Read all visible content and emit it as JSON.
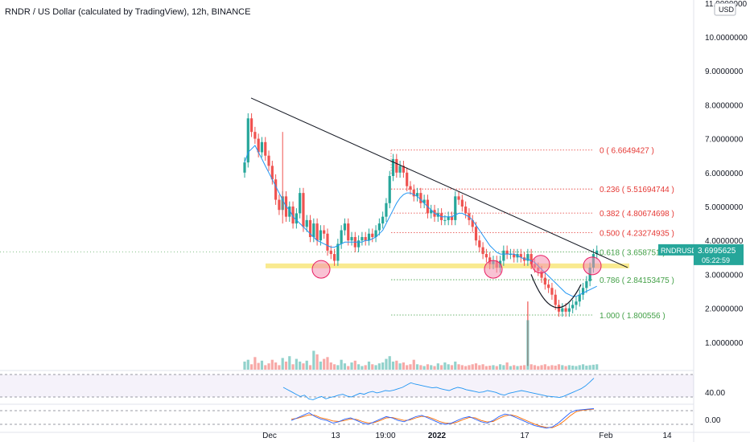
{
  "header": {
    "title": "RNDR / US Dollar (calculated by TradingView), 12h, BINANCE"
  },
  "price_axis": {
    "currency_badge": "USD",
    "labels": [
      "11.0000000",
      "10.0000000",
      "9.0000000",
      "8.0000000",
      "7.0000000",
      "6.0000000",
      "5.0000000",
      "4.0000000",
      "3.0000000",
      "2.0000000",
      "1.0000000"
    ]
  },
  "rsi_axis": {
    "labels": [
      "40.00"
    ]
  },
  "stoch_axis": {
    "labels": [
      "0.00"
    ]
  },
  "last_price": {
    "symbol": "RNDRUSD",
    "price": "3.6995625",
    "countdown": "05:22:59",
    "color": "#26a69a"
  },
  "time_axis": {
    "labels": [
      "Dec",
      "13",
      "19:00",
      "2022",
      "17",
      "Feb",
      "14"
    ]
  },
  "fib_levels": [
    {
      "label": "0 ( 6.6649427 )",
      "value": 6.6649427,
      "color": "#e53935"
    },
    {
      "label": "0.236 ( 5.51694744 )",
      "value": 5.51694744,
      "color": "#e53935"
    },
    {
      "label": "0.382 ( 4.80674698 )",
      "value": 4.80674698,
      "color": "#e53935"
    },
    {
      "label": "0.500 ( 4.23274935 )",
      "value": 4.23274935,
      "color": "#e53935"
    },
    {
      "label": "0.618 ( 3.658751 )",
      "value": 3.658751,
      "color": "#43a047"
    },
    {
      "label": "0.786 ( 2.84153475 )",
      "value": 2.84153475,
      "color": "#43a047"
    },
    {
      "label": "1.000 ( 1.800556 )",
      "value": 1.800556,
      "color": "#43a047"
    }
  ],
  "colors": {
    "up": "#26a69a",
    "down": "#ef5350",
    "ma": "#2196f3",
    "trendline": "#131722",
    "support": "#f7e36b",
    "circle": "#f48fb1"
  },
  "chart_data": {
    "type": "candlestick",
    "symbol": "RNDRUSD",
    "interval": "12h",
    "exchange": "BINANCE",
    "y_range": [
      0,
      11
    ],
    "ohlc_close": [
      6.3,
      7.6,
      7.2,
      7.0,
      6.6,
      6.9,
      6.5,
      6.2,
      5.8,
      5.2,
      4.9,
      5.3,
      4.7,
      5.0,
      4.5,
      4.8,
      5.4,
      4.4,
      4.6,
      4.1,
      4.5,
      4.0,
      4.3,
      4.2,
      3.7,
      3.6,
      3.4,
      3.9,
      4.3,
      4.5,
      4.0,
      4.1,
      3.8,
      4.0,
      4.1,
      4.0,
      4.2,
      4.1,
      4.3,
      4.5,
      4.7,
      5.1,
      5.9,
      6.4,
      6.0,
      6.2,
      6.0,
      5.6,
      5.5,
      5.3,
      5.4,
      5.1,
      5.2,
      4.8,
      4.9,
      4.7,
      4.8,
      4.6,
      4.6,
      4.7,
      4.6,
      5.3,
      5.2,
      5.0,
      4.8,
      4.6,
      4.4,
      4.0,
      3.8,
      3.6,
      3.5,
      3.3,
      3.4,
      3.2,
      3.4,
      3.7,
      3.6,
      3.6,
      3.5,
      3.6,
      3.5,
      3.4,
      3.6,
      3.3,
      3.2,
      3.1,
      2.9,
      2.7,
      2.6,
      2.4,
      2.1,
      1.9,
      2.0,
      1.9,
      2.0,
      2.1,
      2.2,
      2.4,
      2.6,
      2.8,
      3.2,
      3.6,
      3.7
    ],
    "ma": [
      6.3,
      6.6,
      6.7,
      6.8,
      6.6,
      6.4,
      6.2,
      6.0,
      5.8,
      5.6,
      5.4,
      5.2,
      5.0,
      4.9,
      4.7,
      4.6,
      4.5,
      4.4,
      4.3,
      4.2,
      4.1,
      4.0,
      3.95,
      3.9,
      3.85,
      3.8,
      3.8,
      3.85,
      3.9,
      3.95,
      3.95,
      3.95,
      3.95,
      3.95,
      3.95,
      4.0,
      4.0,
      4.05,
      4.1,
      4.2,
      4.3,
      4.5,
      4.7,
      4.9,
      5.1,
      5.25,
      5.35,
      5.4,
      5.4,
      5.35,
      5.3,
      5.2,
      5.1,
      5.0,
      4.9,
      4.8,
      4.75,
      4.7,
      4.7,
      4.7,
      4.7,
      4.75,
      4.8,
      4.8,
      4.75,
      4.7,
      4.6,
      4.45,
      4.3,
      4.15,
      4.0,
      3.85,
      3.75,
      3.65,
      3.6,
      3.6,
      3.6,
      3.6,
      3.6,
      3.55,
      3.5,
      3.45,
      3.45,
      3.4,
      3.35,
      3.25,
      3.15,
      3.05,
      2.95,
      2.85,
      2.75,
      2.65,
      2.55,
      2.45,
      2.4,
      2.35,
      2.35,
      2.4,
      2.45,
      2.5,
      2.55,
      2.6,
      2.65
    ],
    "trendline": {
      "start": 8.2,
      "end": 3.2
    },
    "support_level": 3.25,
    "pattern_circles_y": [
      3.15,
      3.15,
      3.3,
      3.25
    ],
    "volume": [
      1.8,
      2.2,
      1.2,
      2.8,
      1.5,
      2.0,
      1.0,
      1.4,
      2.2,
      1.6,
      1.0,
      2.6,
      1.8,
      3.0,
      1.2,
      2.4,
      1.8,
      1.4,
      2.0,
      1.0,
      4.2,
      3.4,
      1.8,
      2.4,
      2.8,
      1.6,
      1.2,
      1.0,
      2.2,
      1.4,
      0.8,
      1.6,
      2.0,
      1.2,
      0.8,
      1.0,
      1.8,
      1.2,
      1.0,
      1.4,
      1.6,
      2.4,
      3.0,
      1.8,
      2.0,
      1.4,
      1.6,
      1.0,
      1.2,
      2.2,
      1.2,
      1.0,
      0.8,
      1.2,
      1.0,
      0.8,
      1.4,
      1.0,
      1.6,
      1.2,
      1.0,
      1.8,
      1.2,
      1.0,
      0.8,
      1.0,
      1.2,
      1.4,
      1.0,
      1.2,
      0.8,
      0.9,
      1.0,
      0.8,
      1.2,
      1.0,
      1.6,
      0.8,
      1.0,
      0.8,
      0.9,
      1.0,
      11.0,
      1.2,
      1.0,
      0.8,
      1.0,
      1.2,
      0.8,
      1.0,
      0.9,
      1.2,
      1.0,
      0.8,
      1.0,
      0.9,
      0.8,
      1.0,
      1.2,
      0.9,
      1.0,
      1.1,
      1.2
    ],
    "rsi": [
      55,
      50,
      45,
      40,
      35,
      38,
      30,
      28,
      32,
      35,
      30,
      33,
      35,
      38,
      40,
      36,
      34,
      38,
      42,
      40,
      44,
      46,
      43,
      45,
      48,
      47,
      49,
      52,
      55,
      60,
      65,
      62,
      60,
      58,
      56,
      54,
      55,
      52,
      50,
      48,
      52,
      55,
      53,
      50,
      48,
      46,
      44,
      45,
      48,
      46,
      44,
      40,
      38,
      42,
      44,
      46,
      48,
      46,
      44,
      42,
      40,
      38,
      36,
      35,
      34,
      33,
      36,
      40,
      44,
      48,
      52,
      58,
      66,
      75
    ],
    "stoch_k": [
      40,
      50,
      60,
      70,
      55,
      45,
      40,
      30,
      35,
      45,
      50,
      40,
      30,
      25,
      35,
      45,
      55,
      50,
      40,
      35,
      45,
      55,
      60,
      50,
      40,
      30,
      25,
      30,
      40,
      50,
      55,
      45,
      35,
      30,
      40,
      55,
      65,
      60,
      50,
      40,
      30,
      20,
      15,
      10,
      15,
      30,
      50,
      70,
      80,
      82,
      84,
      86
    ],
    "stoch_d": [
      45,
      48,
      55,
      62,
      60,
      50,
      45,
      38,
      36,
      40,
      46,
      44,
      36,
      30,
      32,
      40,
      50,
      52,
      46,
      40,
      42,
      50,
      56,
      54,
      46,
      36,
      30,
      28,
      34,
      44,
      52,
      50,
      40,
      34,
      36,
      48,
      58,
      62,
      56,
      46,
      36,
      26,
      18,
      13,
      12,
      22,
      38,
      58,
      74,
      80,
      82,
      84
    ]
  }
}
